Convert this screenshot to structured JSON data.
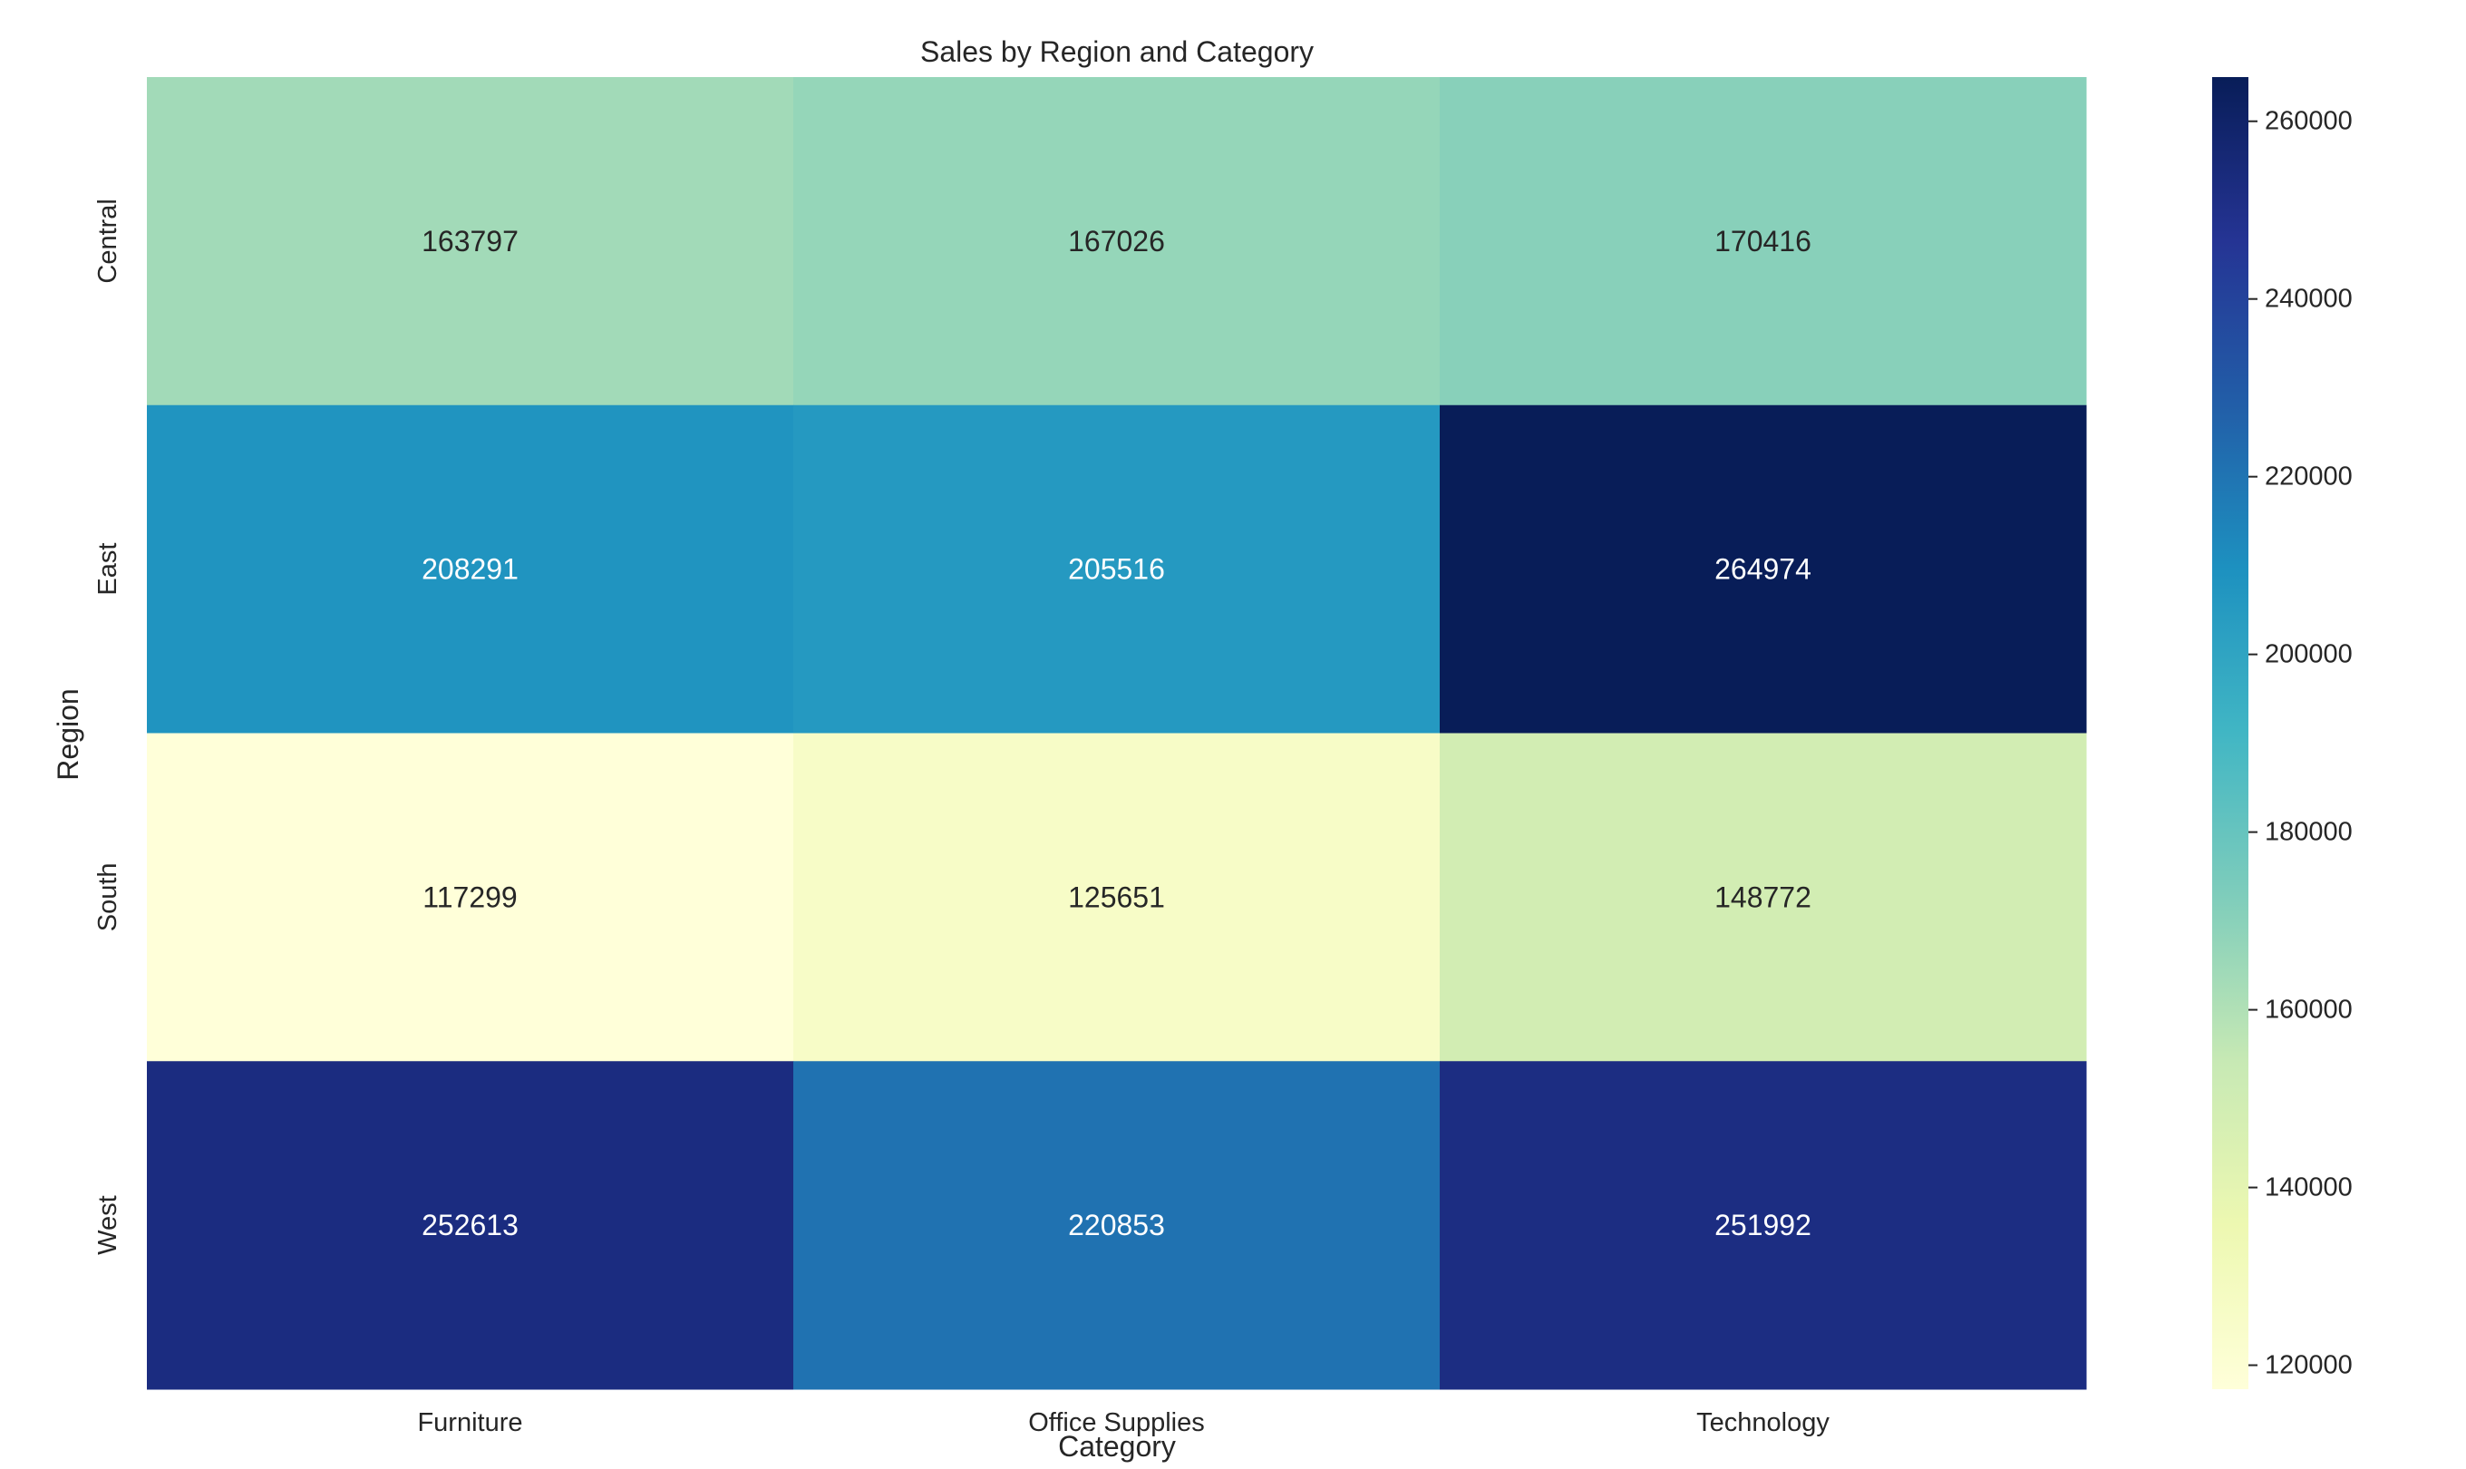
{
  "chart_data": {
    "type": "heatmap",
    "title": "Sales by Region and Category",
    "xlabel": "Category",
    "ylabel": "Region",
    "x": [
      "Furniture",
      "Office Supplies",
      "Technology"
    ],
    "y": [
      "Central",
      "East",
      "South",
      "West"
    ],
    "values": [
      [
        163797,
        167026,
        170416
      ],
      [
        208291,
        205516,
        264974
      ],
      [
        117299,
        125651,
        148772
      ],
      [
        252613,
        220853,
        251992
      ]
    ],
    "colorscale": "YlGnBu",
    "vmin": 117299,
    "vmax": 264974,
    "colorbar_ticks": [
      "120000",
      "140000",
      "160000",
      "180000",
      "200000",
      "220000",
      "240000",
      "260000"
    ],
    "grid": false
  }
}
